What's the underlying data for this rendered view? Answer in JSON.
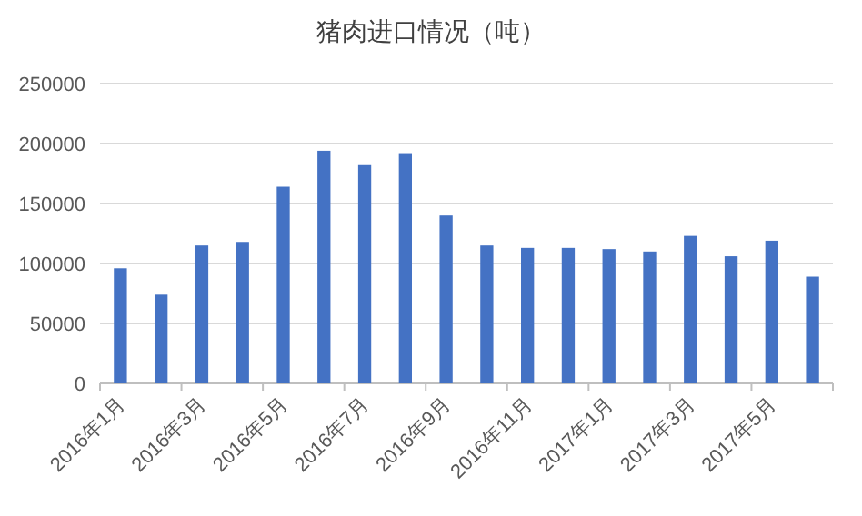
{
  "chart_data": {
    "type": "bar",
    "title": "猪肉进口情况（吨）",
    "categories": [
      "2016年1月",
      null,
      "2016年3月",
      null,
      "2016年5月",
      null,
      "2016年7月",
      null,
      "2016年9月",
      null,
      "2016年11月",
      null,
      "2017年1月",
      null,
      "2017年3月",
      null,
      "2017年5月",
      null
    ],
    "series": [
      {
        "color": "#4472c4",
        "values": [
          96000,
          74000,
          115000,
          118000,
          164000,
          194000,
          182000,
          192000,
          140000,
          115000,
          113000,
          113000,
          112000,
          110000,
          123000,
          106000,
          119000,
          89000
        ]
      }
    ],
    "ylim": [
      0,
      250000
    ],
    "yticks": [
      0,
      50000,
      100000,
      150000,
      200000,
      250000
    ],
    "grid": "y"
  }
}
